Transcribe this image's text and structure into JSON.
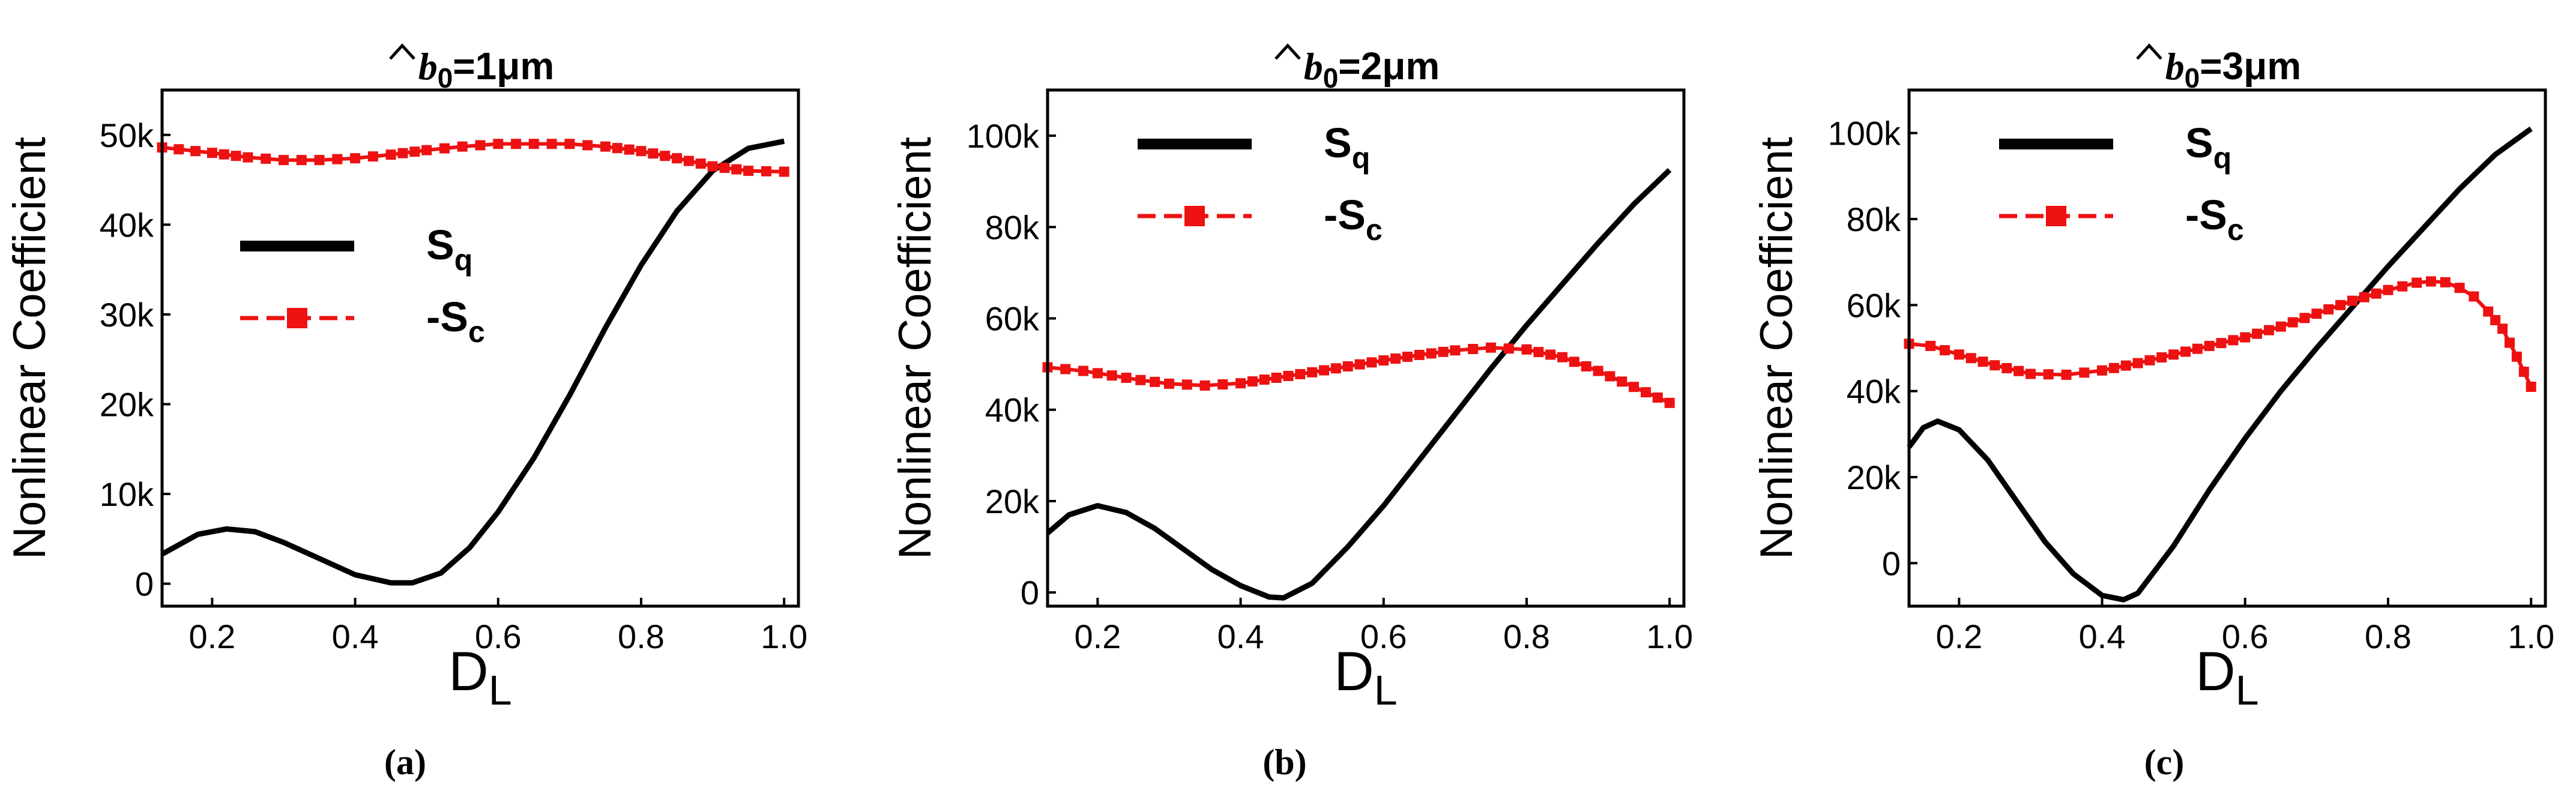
{
  "figure": {
    "panel_labels": [
      "(a)",
      "(b)",
      "(c)"
    ]
  },
  "chart_data": [
    {
      "type": "line",
      "title": {
        "var": "b",
        "sub": "0",
        "value": "=1μm"
      },
      "xlabel": {
        "main": "D",
        "sub": "L"
      },
      "ylabel": "Nonlinear Coefficient",
      "xlim": [
        0.13,
        1.02
      ],
      "ylim": [
        -2500,
        55000
      ],
      "xticks": [
        0.2,
        0.4,
        0.6,
        0.8,
        1.0
      ],
      "xtick_labels": [
        "0.2",
        "0.4",
        "0.6",
        "0.8",
        "1.0"
      ],
      "yticks": [
        0,
        10000,
        20000,
        30000,
        40000,
        50000
      ],
      "ytick_labels": [
        "0",
        "10k",
        "20k",
        "30k",
        "40k",
        "50k"
      ],
      "legend_position": "center-left",
      "series": [
        {
          "name": {
            "main": "S",
            "sub": "q"
          },
          "style": "solid",
          "color": "#000000",
          "x": [
            0.13,
            0.18,
            0.22,
            0.26,
            0.3,
            0.35,
            0.4,
            0.45,
            0.48,
            0.52,
            0.56,
            0.6,
            0.65,
            0.7,
            0.75,
            0.8,
            0.85,
            0.9,
            0.95,
            1.0
          ],
          "y": [
            3300,
            5500,
            6100,
            5800,
            4600,
            2800,
            1000,
            100,
            100,
            1200,
            4000,
            8000,
            14000,
            21000,
            28500,
            35500,
            41500,
            46000,
            48500,
            49300
          ]
        },
        {
          "name": {
            "main": "-S",
            "sub": "c"
          },
          "style": "square-markers",
          "color": "#ee1111",
          "x": [
            0.13,
            0.2,
            0.25,
            0.3,
            0.35,
            0.4,
            0.45,
            0.5,
            0.55,
            0.6,
            0.65,
            0.7,
            0.75,
            0.8,
            0.85,
            0.9,
            0.95,
            1.0
          ],
          "y": [
            48600,
            48000,
            47500,
            47200,
            47200,
            47400,
            47800,
            48300,
            48700,
            49000,
            49000,
            49000,
            48700,
            48200,
            47400,
            46500,
            46000,
            45900
          ]
        }
      ]
    },
    {
      "type": "line",
      "title": {
        "var": "b",
        "sub": "0",
        "value": "=2μm"
      },
      "xlabel": {
        "main": "D",
        "sub": "L"
      },
      "ylabel": "Nonlinear Coefficient",
      "xlim": [
        0.13,
        1.02
      ],
      "ylim": [
        -3000,
        110000
      ],
      "xticks": [
        0.2,
        0.4,
        0.6,
        0.8,
        1.0
      ],
      "xtick_labels": [
        "0.2",
        "0.4",
        "0.6",
        "0.8",
        "1.0"
      ],
      "yticks": [
        0,
        20000,
        40000,
        60000,
        80000,
        100000
      ],
      "ytick_labels": [
        "0",
        "20k",
        "40k",
        "60k",
        "80k",
        "100k"
      ],
      "legend_position": "top-left",
      "series": [
        {
          "name": {
            "main": "S",
            "sub": "q"
          },
          "style": "solid",
          "color": "#000000",
          "x": [
            0.13,
            0.16,
            0.2,
            0.24,
            0.28,
            0.32,
            0.36,
            0.4,
            0.44,
            0.46,
            0.5,
            0.55,
            0.6,
            0.65,
            0.7,
            0.75,
            0.8,
            0.85,
            0.9,
            0.95,
            1.0
          ],
          "y": [
            13000,
            17000,
            19000,
            17500,
            14000,
            9500,
            5000,
            1500,
            -1000,
            -1200,
            2000,
            10000,
            19000,
            29000,
            39000,
            49000,
            58500,
            67500,
            76500,
            85000,
            92500
          ]
        },
        {
          "name": {
            "main": "-S",
            "sub": "c"
          },
          "style": "square-markers",
          "color": "#ee1111",
          "x": [
            0.13,
            0.18,
            0.22,
            0.26,
            0.3,
            0.35,
            0.4,
            0.45,
            0.5,
            0.55,
            0.6,
            0.65,
            0.7,
            0.75,
            0.8,
            0.85,
            0.9,
            0.95,
            1.0
          ],
          "y": [
            49300,
            48500,
            47500,
            46500,
            45700,
            45300,
            45800,
            47000,
            48200,
            49500,
            50800,
            52000,
            53000,
            53600,
            53200,
            51500,
            48500,
            45000,
            41500
          ]
        }
      ]
    },
    {
      "type": "line",
      "title": {
        "var": "b",
        "sub": "0",
        "value": "=3μm"
      },
      "xlabel": {
        "main": "D",
        "sub": "L"
      },
      "ylabel": "Nonlinear Coefficient",
      "xlim": [
        0.13,
        1.02
      ],
      "ylim": [
        -10000,
        110000
      ],
      "xticks": [
        0.2,
        0.4,
        0.6,
        0.8,
        1.0
      ],
      "xtick_labels": [
        "0.2",
        "0.4",
        "0.6",
        "0.8",
        "1.0"
      ],
      "yticks": [
        0,
        20000,
        40000,
        60000,
        80000,
        100000
      ],
      "ytick_labels": [
        "0",
        "20k",
        "40k",
        "60k",
        "80k",
        "100k"
      ],
      "legend_position": "top-left",
      "series": [
        {
          "name": {
            "main": "S",
            "sub": "q"
          },
          "style": "solid",
          "color": "#000000",
          "x": [
            0.13,
            0.15,
            0.17,
            0.2,
            0.24,
            0.28,
            0.32,
            0.36,
            0.4,
            0.43,
            0.45,
            0.5,
            0.55,
            0.6,
            0.65,
            0.7,
            0.75,
            0.8,
            0.85,
            0.9,
            0.95,
            1.0
          ],
          "y": [
            27000,
            31500,
            33000,
            31000,
            24000,
            14500,
            5000,
            -2500,
            -7500,
            -8500,
            -7000,
            4000,
            17000,
            29000,
            40000,
            50000,
            59500,
            69000,
            78000,
            87000,
            95000,
            101000
          ]
        },
        {
          "name": {
            "main": "-S",
            "sub": "c"
          },
          "style": "square-markers",
          "color": "#ee1111",
          "x": [
            0.13,
            0.16,
            0.2,
            0.25,
            0.3,
            0.35,
            0.4,
            0.45,
            0.5,
            0.55,
            0.6,
            0.65,
            0.7,
            0.75,
            0.8,
            0.84,
            0.86,
            0.88,
            0.9,
            0.92,
            0.94,
            0.96,
            0.98,
            1.0
          ],
          "y": [
            51000,
            50500,
            48500,
            46000,
            44000,
            43800,
            44800,
            46500,
            48500,
            50500,
            52500,
            55000,
            58000,
            61000,
            63500,
            65200,
            65500,
            65300,
            64000,
            62000,
            58500,
            54500,
            48000,
            41000
          ]
        }
      ]
    }
  ]
}
